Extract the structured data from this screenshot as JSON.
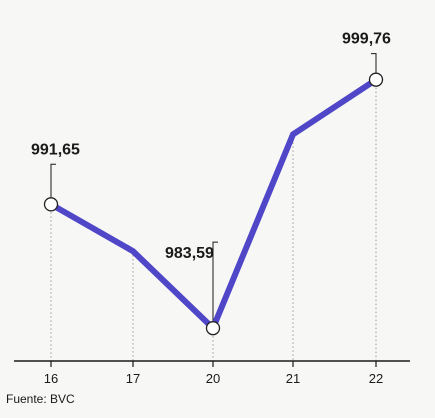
{
  "chart_data": {
    "type": "line",
    "title": "",
    "xlabel": "",
    "ylabel": "",
    "categories": [
      "16",
      "17",
      "20",
      "21",
      "22"
    ],
    "values": [
      991.65,
      988.6,
      983.59,
      996.2,
      999.76
    ],
    "data_labels": [
      {
        "index": 0,
        "text": "991,65"
      },
      {
        "index": 2,
        "text": "983,59"
      },
      {
        "index": 4,
        "text": "999,76"
      }
    ],
    "ylim": [
      982.3,
      1001.3
    ],
    "grid": "vertical dotted drop lines",
    "legend": "none",
    "colors": {
      "line": "#4f46c8",
      "axis": "#1a1a1a",
      "dropline": "#9a9a9a",
      "marker_fill": "#ffffff"
    }
  },
  "source": "Fuente: BVC"
}
